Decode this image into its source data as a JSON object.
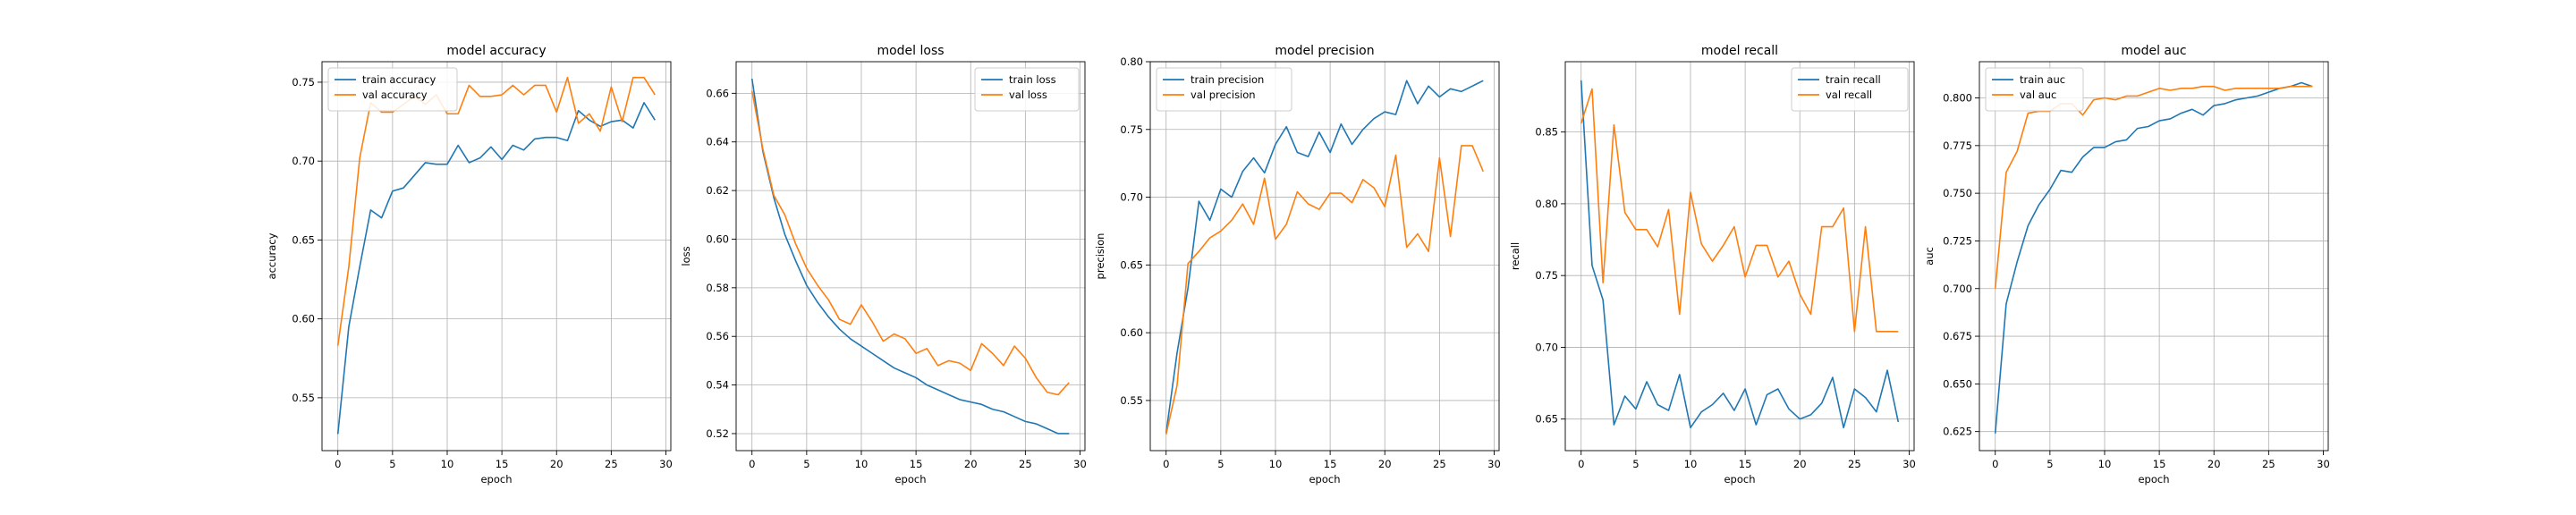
{
  "figure": {
    "panel_count": 5
  },
  "chart_data": [
    {
      "type": "line",
      "title": "model accuracy",
      "xlabel": "epoch",
      "ylabel": "accuracy",
      "xlim": [
        -1.45,
        30.45
      ],
      "ylim": [
        0.5165,
        0.763
      ],
      "xticks": [
        0,
        5,
        10,
        15,
        20,
        25,
        30
      ],
      "yticks": [
        0.55,
        0.6,
        0.65,
        0.7,
        0.75
      ],
      "ytick_labels": [
        "0.55",
        "0.60",
        "0.65",
        "0.70",
        "0.75"
      ],
      "grid": true,
      "legend_position": "upper left",
      "x": [
        0,
        1,
        2,
        3,
        4,
        5,
        6,
        7,
        8,
        9,
        10,
        11,
        12,
        13,
        14,
        15,
        16,
        17,
        18,
        19,
        20,
        21,
        22,
        23,
        24,
        25,
        26,
        27,
        28,
        29
      ],
      "series": [
        {
          "name": "train accuracy",
          "color": "#1f77b4",
          "values": [
            0.527,
            0.595,
            0.633,
            0.669,
            0.664,
            0.681,
            0.683,
            0.691,
            0.699,
            0.698,
            0.698,
            0.71,
            0.699,
            0.702,
            0.709,
            0.701,
            0.71,
            0.707,
            0.714,
            0.715,
            0.715,
            0.713,
            0.732,
            0.726,
            0.722,
            0.725,
            0.726,
            0.721,
            0.737,
            0.726
          ]
        },
        {
          "name": "val accuracy",
          "color": "#ff7f0e",
          "values": [
            0.583,
            0.633,
            0.702,
            0.737,
            0.731,
            0.731,
            0.736,
            0.741,
            0.736,
            0.742,
            0.73,
            0.73,
            0.748,
            0.741,
            0.741,
            0.742,
            0.748,
            0.742,
            0.748,
            0.748,
            0.731,
            0.753,
            0.724,
            0.73,
            0.719,
            0.747,
            0.725,
            0.753,
            0.753,
            0.742
          ]
        }
      ]
    },
    {
      "type": "line",
      "title": "model loss",
      "xlabel": "epoch",
      "ylabel": "loss",
      "xlim": [
        -1.45,
        30.45
      ],
      "ylim": [
        0.513,
        0.673
      ],
      "xticks": [
        0,
        5,
        10,
        15,
        20,
        25,
        30
      ],
      "yticks": [
        0.52,
        0.54,
        0.56,
        0.58,
        0.6,
        0.62,
        0.64,
        0.66
      ],
      "ytick_labels": [
        "0.52",
        "0.54",
        "0.56",
        "0.58",
        "0.60",
        "0.62",
        "0.64",
        "0.66"
      ],
      "grid": true,
      "legend_position": "upper right",
      "x": [
        0,
        1,
        2,
        3,
        4,
        5,
        6,
        7,
        8,
        9,
        10,
        11,
        12,
        13,
        14,
        15,
        16,
        17,
        18,
        19,
        20,
        21,
        22,
        23,
        24,
        25,
        26,
        27,
        28,
        29
      ],
      "series": [
        {
          "name": "train loss",
          "color": "#1f77b4",
          "values": [
            0.666,
            0.636,
            0.617,
            0.602,
            0.591,
            0.581,
            0.574,
            0.568,
            0.563,
            0.559,
            0.556,
            0.553,
            0.55,
            0.547,
            0.545,
            0.543,
            0.54,
            0.538,
            0.536,
            0.534,
            0.533,
            0.532,
            0.53,
            0.529,
            0.527,
            0.525,
            0.524,
            0.522,
            0.52,
            0.52
          ]
        },
        {
          "name": "val loss",
          "color": "#ff7f0e",
          "values": [
            0.661,
            0.637,
            0.618,
            0.61,
            0.598,
            0.588,
            0.581,
            0.575,
            0.567,
            0.565,
            0.573,
            0.566,
            0.558,
            0.561,
            0.559,
            0.553,
            0.555,
            0.548,
            0.55,
            0.549,
            0.546,
            0.557,
            0.553,
            0.548,
            0.556,
            0.551,
            0.543,
            0.537,
            0.536,
            0.541
          ]
        }
      ]
    },
    {
      "type": "line",
      "title": "model precision",
      "xlabel": "epoch",
      "ylabel": "precision",
      "xlim": [
        -1.45,
        30.45
      ],
      "ylim": [
        0.513,
        0.8
      ],
      "xticks": [
        0,
        5,
        10,
        15,
        20,
        25,
        30
      ],
      "yticks": [
        0.55,
        0.6,
        0.65,
        0.7,
        0.75,
        0.8
      ],
      "ytick_labels": [
        "0.55",
        "0.60",
        "0.65",
        "0.70",
        "0.75",
        "0.80"
      ],
      "grid": true,
      "legend_position": "upper left",
      "x": [
        0,
        1,
        2,
        3,
        4,
        5,
        6,
        7,
        8,
        9,
        10,
        11,
        12,
        13,
        14,
        15,
        16,
        17,
        18,
        19,
        20,
        21,
        22,
        23,
        24,
        25,
        26,
        27,
        28,
        29
      ],
      "series": [
        {
          "name": "train precision",
          "color": "#1f77b4",
          "values": [
            0.526,
            0.585,
            0.633,
            0.697,
            0.683,
            0.706,
            0.7,
            0.719,
            0.729,
            0.718,
            0.739,
            0.752,
            0.733,
            0.73,
            0.748,
            0.733,
            0.754,
            0.739,
            0.75,
            0.758,
            0.763,
            0.761,
            0.786,
            0.769,
            0.782,
            0.774,
            0.78,
            0.778,
            0.782,
            0.786
          ]
        },
        {
          "name": "val precision",
          "color": "#ff7f0e",
          "values": [
            0.525,
            0.561,
            0.651,
            0.66,
            0.67,
            0.675,
            0.683,
            0.695,
            0.68,
            0.714,
            0.669,
            0.68,
            0.704,
            0.695,
            0.691,
            0.703,
            0.703,
            0.696,
            0.713,
            0.707,
            0.693,
            0.731,
            0.663,
            0.673,
            0.66,
            0.729,
            0.671,
            0.738,
            0.738,
            0.719
          ]
        }
      ]
    },
    {
      "type": "line",
      "title": "model recall",
      "xlabel": "epoch",
      "ylabel": "recall",
      "xlim": [
        -1.45,
        30.45
      ],
      "ylim": [
        0.628,
        0.899
      ],
      "xticks": [
        0,
        5,
        10,
        15,
        20,
        25,
        30
      ],
      "yticks": [
        0.65,
        0.7,
        0.75,
        0.8,
        0.85
      ],
      "ytick_labels": [
        "0.65",
        "0.70",
        "0.75",
        "0.80",
        "0.85"
      ],
      "grid": true,
      "legend_position": "upper right",
      "x": [
        0,
        1,
        2,
        3,
        4,
        5,
        6,
        7,
        8,
        9,
        10,
        11,
        12,
        13,
        14,
        15,
        16,
        17,
        18,
        19,
        20,
        21,
        22,
        23,
        24,
        25,
        26,
        27,
        28,
        29
      ],
      "series": [
        {
          "name": "train recall",
          "color": "#1f77b4",
          "values": [
            0.886,
            0.757,
            0.733,
            0.646,
            0.666,
            0.657,
            0.676,
            0.66,
            0.656,
            0.681,
            0.644,
            0.655,
            0.66,
            0.668,
            0.656,
            0.671,
            0.646,
            0.667,
            0.671,
            0.657,
            0.65,
            0.653,
            0.661,
            0.679,
            0.644,
            0.671,
            0.665,
            0.655,
            0.684,
            0.648
          ]
        },
        {
          "name": "val recall",
          "color": "#ff7f0e",
          "values": [
            0.856,
            0.88,
            0.745,
            0.855,
            0.794,
            0.782,
            0.782,
            0.77,
            0.796,
            0.723,
            0.808,
            0.772,
            0.76,
            0.771,
            0.784,
            0.749,
            0.771,
            0.771,
            0.749,
            0.76,
            0.737,
            0.723,
            0.784,
            0.784,
            0.797,
            0.711,
            0.784,
            0.711,
            0.711,
            0.711
          ]
        }
      ]
    },
    {
      "type": "line",
      "title": "model auc",
      "xlabel": "epoch",
      "ylabel": "auc",
      "xlim": [
        -1.45,
        30.45
      ],
      "ylim": [
        0.615,
        0.819
      ],
      "xticks": [
        0,
        5,
        10,
        15,
        20,
        25,
        30
      ],
      "yticks": [
        0.625,
        0.65,
        0.675,
        0.7,
        0.725,
        0.75,
        0.775,
        0.8
      ],
      "ytick_labels": [
        "0.625",
        "0.650",
        "0.675",
        "0.700",
        "0.725",
        "0.750",
        "0.775",
        "0.800"
      ],
      "grid": true,
      "legend_position": "upper left",
      "x": [
        0,
        1,
        2,
        3,
        4,
        5,
        6,
        7,
        8,
        9,
        10,
        11,
        12,
        13,
        14,
        15,
        16,
        17,
        18,
        19,
        20,
        21,
        22,
        23,
        24,
        25,
        26,
        27,
        28,
        29
      ],
      "series": [
        {
          "name": "train auc",
          "color": "#1f77b4",
          "values": [
            0.624,
            0.692,
            0.714,
            0.733,
            0.744,
            0.752,
            0.762,
            0.761,
            0.769,
            0.774,
            0.774,
            0.777,
            0.778,
            0.784,
            0.785,
            0.788,
            0.789,
            0.792,
            0.794,
            0.791,
            0.796,
            0.797,
            0.799,
            0.8,
            0.801,
            0.803,
            0.805,
            0.806,
            0.808,
            0.806
          ]
        },
        {
          "name": "val auc",
          "color": "#ff7f0e",
          "values": [
            0.7,
            0.761,
            0.772,
            0.792,
            0.793,
            0.793,
            0.797,
            0.797,
            0.791,
            0.799,
            0.8,
            0.799,
            0.801,
            0.801,
            0.803,
            0.805,
            0.804,
            0.805,
            0.805,
            0.806,
            0.806,
            0.804,
            0.805,
            0.805,
            0.805,
            0.805,
            0.805,
            0.806,
            0.806,
            0.806
          ]
        }
      ]
    }
  ]
}
